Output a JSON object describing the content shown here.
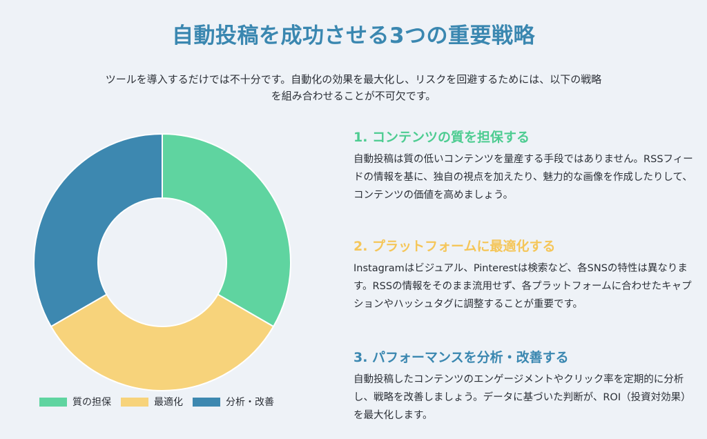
{
  "title": "自動投稿を成功させる3つの重要戦略",
  "intro": {
    "line1": "ツールを導入するだけでは不十分です。自動化の効果を最大化し、リスクを回避するためには、以下の戦略",
    "line2": "を組み合わせることが不可欠です。"
  },
  "sections": [
    {
      "heading": "1. コンテンツの質を担保する",
      "color": "#4dcc91",
      "body": "自動投稿は質の低いコンテンツを量産する手段ではありません。RSSフィードの情報を基に、独自の視点を加えたり、魅力的な画像を作成したりして、コンテンツの価値を高めましょう。"
    },
    {
      "heading": "2. プラットフォームに最適化する",
      "color": "#f5c659",
      "body": "Instagramはビジュアル、Pinterestは検索など、各SNSの特性は異なります。RSSの情報をそのまま流用せず、各プラットフォームに合わせたキャプションやハッシュタグに調整することが重要です。"
    },
    {
      "heading": "3. パフォーマンスを分析・改善する",
      "color": "#3a87b0",
      "body": "自動投稿したコンテンツのエンゲージメントやクリック率を定期的に分析し、戦略を改善しましょう。データに基づいた判断が、ROI（投資対効果）を最大化します。"
    }
  ],
  "chart_data": {
    "type": "pie",
    "donut": true,
    "categories": [
      "質の担保",
      "最適化",
      "分析・改善"
    ],
    "values": [
      33.3,
      33.3,
      33.3
    ],
    "colors": [
      "#5fd4a0",
      "#f7d37b",
      "#3d88b0"
    ],
    "legend": "bottom"
  }
}
